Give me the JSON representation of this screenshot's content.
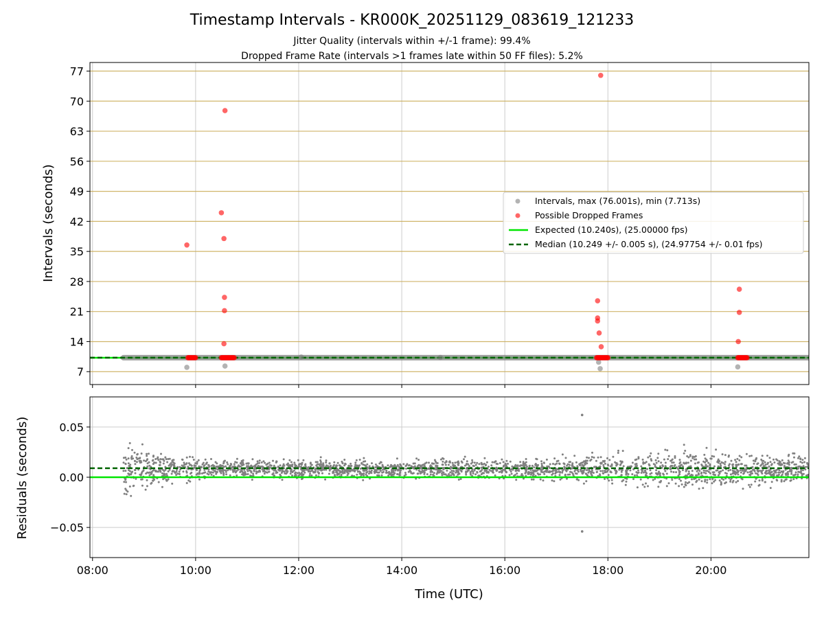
{
  "chart_data": {
    "type": "scatter",
    "title": "Timestamp Intervals - KR000K_20251129_083619_121233",
    "subtitle_lines": [
      "Jitter Quality (intervals within +/-1 frame): 99.4%",
      "Dropped Frame Rate (intervals >1 frames late within 50 FF files): 5.2%"
    ],
    "xlabel": "Time (UTC)",
    "x_unit": "hours (UTC)",
    "xlim": [
      7.95,
      21.9
    ],
    "x_ticks": [
      8,
      10,
      12,
      14,
      16,
      18,
      20
    ],
    "x_tick_labels": [
      "08:00",
      "10:00",
      "12:00",
      "14:00",
      "16:00",
      "18:00",
      "20:00"
    ],
    "colors": {
      "intervals": "#808080",
      "dropped": "#ff0000",
      "expected": "#00e600",
      "median": "#006400",
      "hline": "#c8a850",
      "grid": "#cccccc"
    },
    "top_panel": {
      "ylabel": "Intervals (seconds)",
      "ylim": [
        4,
        79
      ],
      "y_ticks": [
        7,
        14,
        21,
        28,
        35,
        42,
        49,
        56,
        63,
        70,
        77
      ],
      "y_tick_labels": [
        "7",
        "14",
        "21",
        "28",
        "35",
        "42",
        "49",
        "56",
        "63",
        "70",
        "77"
      ],
      "expected_value": 10.24,
      "median_value": 10.249,
      "interval_band": {
        "x_start": 8.6,
        "x_end": 21.9,
        "value": 10.249
      },
      "interval_outliers": [
        {
          "x": 9.83,
          "y": 8.0
        },
        {
          "x": 10.57,
          "y": 8.3
        },
        {
          "x": 17.85,
          "y": 7.7
        },
        {
          "x": 20.52,
          "y": 8.1
        },
        {
          "x": 12.05,
          "y": 10.4
        },
        {
          "x": 14.75,
          "y": 10.3
        },
        {
          "x": 17.82,
          "y": 9.2
        }
      ],
      "dropped_frames": [
        {
          "x": 9.83,
          "y": 36.5
        },
        {
          "x": 10.5,
          "y": 44.0
        },
        {
          "x": 10.55,
          "y": 38.0
        },
        {
          "x": 10.56,
          "y": 24.3
        },
        {
          "x": 10.56,
          "y": 21.2
        },
        {
          "x": 10.55,
          "y": 13.5
        },
        {
          "x": 10.57,
          "y": 67.8
        },
        {
          "x": 17.86,
          "y": 76.0
        },
        {
          "x": 17.8,
          "y": 23.5
        },
        {
          "x": 17.8,
          "y": 19.5
        },
        {
          "x": 17.8,
          "y": 18.8
        },
        {
          "x": 17.83,
          "y": 16.0
        },
        {
          "x": 17.87,
          "y": 12.8
        },
        {
          "x": 20.55,
          "y": 26.2
        },
        {
          "x": 20.55,
          "y": 20.8
        },
        {
          "x": 20.53,
          "y": 14.0
        }
      ],
      "dropped_clusters": [
        {
          "x_start": 9.85,
          "x_end": 10.0,
          "y": 10.25
        },
        {
          "x_start": 10.5,
          "x_end": 10.75,
          "y": 10.25
        },
        {
          "x_start": 17.78,
          "x_end": 18.0,
          "y": 10.25
        },
        {
          "x_start": 20.52,
          "x_end": 20.7,
          "y": 10.25
        }
      ],
      "legend": {
        "position": "center-right",
        "entries": [
          "Intervals, max (76.001s), min (7.713s)",
          "Possible Dropped Frames",
          "Expected (10.240s), (25.00000 fps)",
          "Median (10.249 +/- 0.005 s), (24.97754 +/- 0.01 fps)"
        ]
      }
    },
    "bottom_panel": {
      "ylabel": "Residuals (seconds)",
      "ylim": [
        -0.08,
        0.08
      ],
      "y_ticks": [
        -0.05,
        0.0,
        0.05
      ],
      "y_tick_labels": [
        "−0.05",
        "0.00",
        "0.05"
      ],
      "expected_residual": 0.0,
      "median_residual": 0.009,
      "residual_scatter": {
        "x_start": 8.6,
        "x_end": 21.9,
        "center": 0.008,
        "spread_profile": [
          {
            "x": 8.6,
            "spread": 0.024
          },
          {
            "x": 9.5,
            "spread": 0.014
          },
          {
            "x": 10.5,
            "spread": 0.008
          },
          {
            "x": 12.0,
            "spread": 0.008
          },
          {
            "x": 16.0,
            "spread": 0.009
          },
          {
            "x": 18.0,
            "spread": 0.012
          },
          {
            "x": 19.5,
            "spread": 0.018
          },
          {
            "x": 21.9,
            "spread": 0.013
          }
        ],
        "point_count": 2600
      },
      "residual_outliers": [
        {
          "x": 17.5,
          "y": 0.062
        },
        {
          "x": 17.5,
          "y": -0.054
        }
      ]
    }
  }
}
